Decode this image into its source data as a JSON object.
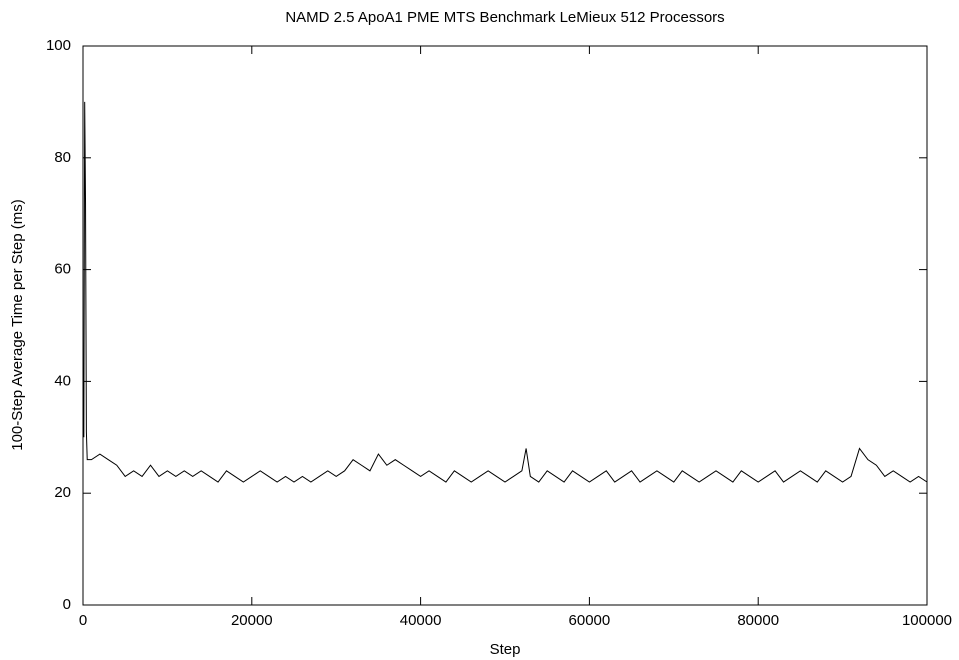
{
  "chart_data": {
    "type": "line",
    "title": "NAMD 2.5 ApoA1 PME MTS Benchmark LeMieux 512 Processors",
    "xlabel": "Step",
    "ylabel": "100-Step Average Time per Step (ms)",
    "color": "#000000",
    "xlim": [
      0,
      100000
    ],
    "xticks": [
      0,
      20000,
      40000,
      60000,
      80000,
      100000
    ],
    "ylim": [
      0,
      100
    ],
    "yticks": [
      0,
      20,
      40,
      60,
      80,
      100
    ],
    "x": [
      100,
      200,
      300,
      400,
      500,
      1000,
      2000,
      3000,
      4000,
      5000,
      6000,
      7000,
      8000,
      9000,
      10000,
      11000,
      12000,
      13000,
      14000,
      15000,
      16000,
      17000,
      18000,
      19000,
      20000,
      21000,
      22000,
      23000,
      24000,
      25000,
      26000,
      27000,
      28000,
      29000,
      30000,
      31000,
      32000,
      33000,
      34000,
      35000,
      36000,
      37000,
      38000,
      39000,
      40000,
      41000,
      42000,
      43000,
      44000,
      45000,
      46000,
      47000,
      48000,
      49000,
      50000,
      51000,
      52000,
      52500,
      53000,
      54000,
      55000,
      56000,
      57000,
      58000,
      59000,
      60000,
      61000,
      62000,
      63000,
      64000,
      65000,
      66000,
      67000,
      68000,
      69000,
      70000,
      71000,
      72000,
      73000,
      74000,
      75000,
      76000,
      77000,
      78000,
      79000,
      80000,
      81000,
      82000,
      83000,
      84000,
      85000,
      86000,
      87000,
      88000,
      89000,
      90000,
      91000,
      92000,
      93000,
      94000,
      95000,
      96000,
      97000,
      98000,
      99000,
      100000
    ],
    "values": [
      30,
      90,
      72,
      31,
      26,
      26,
      27,
      26,
      25,
      23,
      24,
      23,
      25,
      23,
      24,
      23,
      24,
      23,
      24,
      23,
      22,
      24,
      23,
      22,
      23,
      24,
      23,
      22,
      23,
      22,
      23,
      22,
      23,
      24,
      23,
      24,
      26,
      25,
      24,
      27,
      25,
      26,
      25,
      24,
      23,
      24,
      23,
      22,
      24,
      23,
      22,
      23,
      24,
      23,
      22,
      23,
      24,
      28,
      23,
      22,
      24,
      23,
      22,
      24,
      23,
      22,
      23,
      24,
      22,
      23,
      24,
      22,
      23,
      24,
      23,
      22,
      24,
      23,
      22,
      23,
      24,
      23,
      22,
      24,
      23,
      22,
      23,
      24,
      22,
      23,
      24,
      23,
      22,
      24,
      23,
      22,
      23,
      28,
      26,
      25,
      23,
      24,
      23,
      22,
      23,
      22
    ]
  }
}
